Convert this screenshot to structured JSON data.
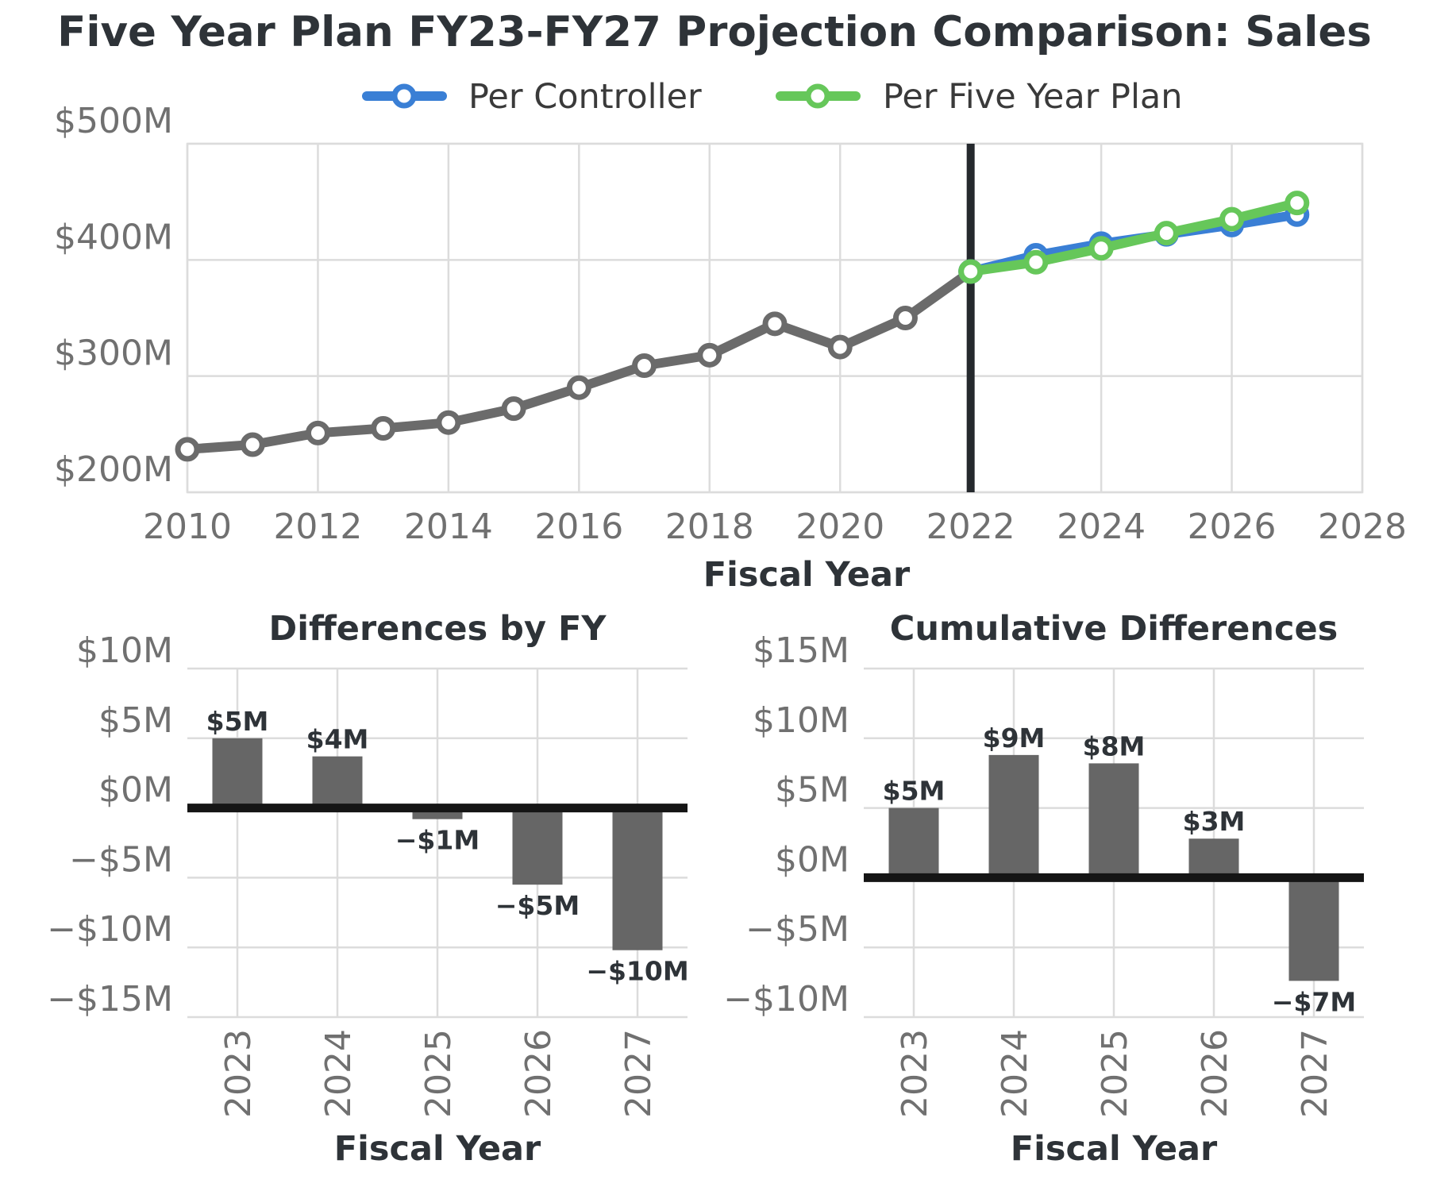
{
  "chart_data": [
    {
      "type": "line",
      "title": "Five Year Plan FY23-FY27 Projection Comparison: Sales",
      "xlabel": "Fiscal Year",
      "ylabel": "",
      "xlim": [
        2010,
        2028
      ],
      "ylim": [
        200,
        500
      ],
      "x_ticks": [
        2010,
        2012,
        2014,
        2016,
        2018,
        2020,
        2022,
        2024,
        2026,
        2028
      ],
      "x_tick_labels": [
        "2010",
        "2012",
        "2014",
        "2016",
        "2018",
        "2020",
        "2022",
        "2024",
        "2026",
        "2028"
      ],
      "y_ticks": [
        200,
        300,
        400,
        500
      ],
      "y_tick_labels": [
        "$200M",
        "$300M",
        "$400M",
        "$500M"
      ],
      "grid": true,
      "legend_position": "top-center",
      "vertical_marker_x": 2022,
      "historical": {
        "color": "#6b6b6b",
        "x": [
          2010,
          2011,
          2012,
          2013,
          2014,
          2015,
          2016,
          2017,
          2018,
          2019,
          2020,
          2021,
          2022
        ],
        "values": [
          237,
          241,
          251,
          255,
          260,
          272,
          290,
          309,
          318,
          345,
          325,
          350,
          390
        ]
      },
      "series": [
        {
          "name": "Per Controller",
          "color": "#3a7fd5",
          "x": [
            2022,
            2023,
            2024,
            2025,
            2026,
            2027
          ],
          "values": [
            390,
            404,
            414,
            422,
            430,
            439
          ]
        },
        {
          "name": "Per Five Year Plan",
          "color": "#66c75a",
          "x": [
            2022,
            2023,
            2024,
            2025,
            2026,
            2027
          ],
          "values": [
            390,
            398,
            410,
            423,
            435,
            449
          ]
        }
      ]
    },
    {
      "type": "bar",
      "title": "Differences by FY",
      "xlabel": "Fiscal Year",
      "ylabel": "",
      "categories": [
        "2023",
        "2024",
        "2025",
        "2026",
        "2027"
      ],
      "values": [
        5,
        3.7,
        -0.8,
        -5.5,
        -10.2
      ],
      "labels": [
        "$5M",
        "$4M",
        "−$1M",
        "−$5M",
        "−$10M"
      ],
      "ylim": [
        -15,
        10
      ],
      "y_ticks": [
        10,
        5,
        0,
        -5,
        -10,
        -15
      ],
      "y_tick_labels": [
        "$10M",
        "$5M",
        "$0M",
        "−$5M",
        "−$10M",
        "−$15M"
      ],
      "grid": true,
      "bar_color": "#666666"
    },
    {
      "type": "bar",
      "title": "Cumulative Differences",
      "xlabel": "Fiscal Year",
      "ylabel": "",
      "categories": [
        "2023",
        "2024",
        "2025",
        "2026",
        "2027"
      ],
      "values": [
        5,
        8.8,
        8.2,
        2.8,
        -7.4
      ],
      "labels": [
        "$5M",
        "$9M",
        "$8M",
        "$3M",
        "−$7M"
      ],
      "ylim": [
        -10,
        15
      ],
      "y_ticks": [
        15,
        10,
        5,
        0,
        -5,
        -10
      ],
      "y_tick_labels": [
        "$15M",
        "$10M",
        "$5M",
        "$0M",
        "−$5M",
        "−$10M"
      ],
      "grid": true,
      "bar_color": "#666666"
    }
  ]
}
